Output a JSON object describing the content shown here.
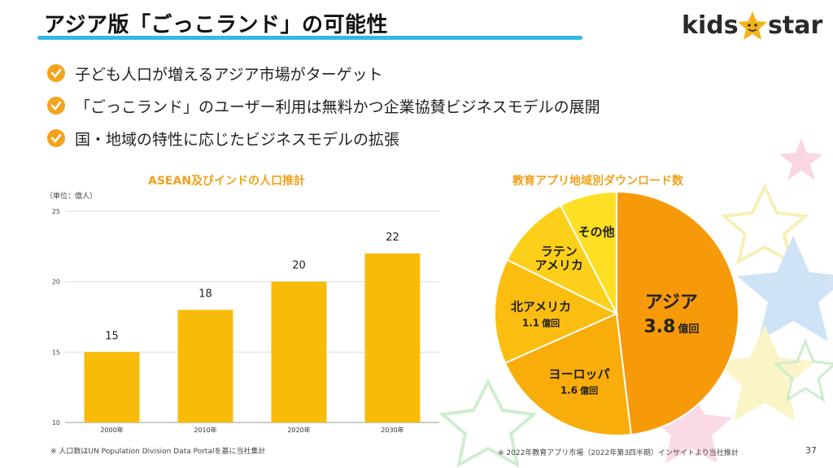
{
  "header": {
    "title": "アジア版「ごっこランド」の可能性"
  },
  "logo": {
    "left": "kids",
    "right": "star"
  },
  "bullets": [
    "子ども人口が増えるアジア市場がターゲット",
    "「ごっこランド」のユーザー利用は無料かつ企業協賛ビジネスモデルの展開",
    "国・地域の特性に応じたビジネスモデルの拡張"
  ],
  "colors": {
    "accent": "#f5a31c",
    "bar": "#f9bb0a",
    "underline": "#38b6e8"
  },
  "bar_chart": {
    "title": "ASEAN及びインドの人口推計",
    "unit": "（単位：億人）",
    "source": "※ 人口数はUN Population Division Data Portalを基に当社集計"
  },
  "pie_chart": {
    "title": "教育アプリ地域別ダウンロード数",
    "source": "※ 2022年教育アプリ市場（2022年第3四半期）インサイトより当社推計"
  },
  "page_number": "37",
  "chart_data": [
    {
      "type": "bar",
      "title": "ASEAN及びインドの人口推計",
      "ylabel": "（単位：億人）",
      "categories": [
        "2000年",
        "2010年",
        "2020年",
        "2030年"
      ],
      "values": [
        15,
        18,
        20,
        22
      ],
      "data_labels": [
        "15",
        "18",
        "20",
        "22"
      ],
      "yticks": [
        10,
        15,
        20,
        25
      ],
      "ytick_labels": [
        "10",
        "15",
        "20",
        "25"
      ],
      "ylim": [
        10,
        25
      ],
      "grid": true,
      "color": "#f9bb0a"
    },
    {
      "type": "pie",
      "title": "教育アプリ地域別ダウンロード数",
      "slices": [
        {
          "label_lines": [
            "アジア"
          ],
          "value_label": "3.8",
          "unit_label": "億回",
          "value": 3.8,
          "color": "#f79a0a"
        },
        {
          "label_lines": [
            "ヨーロッパ"
          ],
          "value_label": "1.6",
          "unit_label": "億回",
          "value": 1.6,
          "color": "#f9ad0a"
        },
        {
          "label_lines": [
            "北アメリカ"
          ],
          "value_label": "1.1",
          "unit_label": "億回",
          "value": 1.1,
          "color": "#fbbd10"
        },
        {
          "label_lines": [
            "ラテン",
            "アメリカ"
          ],
          "value_label": "",
          "unit_label": "",
          "value": 0.8,
          "color": "#fcd01a"
        },
        {
          "label_lines": [
            "その他"
          ],
          "value_label": "",
          "unit_label": "",
          "value": 0.6,
          "color": "#fde024"
        }
      ]
    }
  ]
}
